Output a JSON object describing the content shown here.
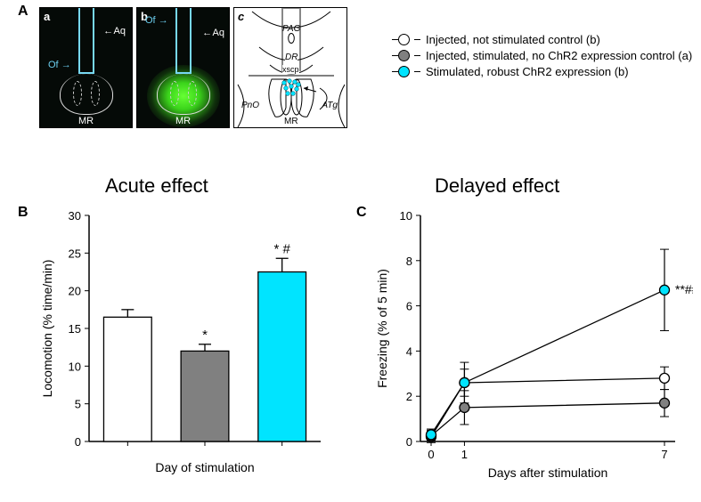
{
  "panel_labels": {
    "A": "A",
    "B": "B",
    "C": "C",
    "a": "a",
    "b": "b",
    "c": "c"
  },
  "micro_annotations": {
    "Aq": "Aq",
    "Of": "Of",
    "MR": "MR"
  },
  "schematic_labels": {
    "PAG": "PAG",
    "DR": "DR",
    "xscp": "xscp",
    "PnO": "PnO",
    "ATg": "ATg",
    "MR": "MR"
  },
  "legend": {
    "items": [
      {
        "label": "Injected, not stimulated control (b)",
        "fill": "#ffffff"
      },
      {
        "label": "Injected, stimulated, no ChR2 expression control (a)",
        "fill": "#808080"
      },
      {
        "label": "Stimulated, robust ChR2 expression (b)",
        "fill": "#00d8f0"
      }
    ]
  },
  "titles": {
    "acute": "Acute effect",
    "delayed": "Delayed effect"
  },
  "bar_chart": {
    "type": "bar",
    "title_fontsize": 22,
    "ylabel": "Locomotion  (% time/min)",
    "xlabel": "Day of stimulation",
    "label_fontsize": 14,
    "ylim": [
      0,
      30
    ],
    "ytick_step": 5,
    "bar_width": 0.62,
    "axis_color": "#000000",
    "bars": [
      {
        "value": 16.5,
        "err": 1.0,
        "fill": "#ffffff",
        "stroke": "#000000",
        "annot": ""
      },
      {
        "value": 12.0,
        "err": 0.9,
        "fill": "#808080",
        "stroke": "#000000",
        "annot": "*"
      },
      {
        "value": 22.5,
        "err": 1.8,
        "fill": "#00e4ff",
        "stroke": "#000000",
        "annot": "* #"
      }
    ]
  },
  "line_chart": {
    "type": "line",
    "ylabel": "Freezing (% of 5 min)",
    "xlabel": "Days after stimulation",
    "label_fontsize": 14,
    "xticks": [
      0,
      1,
      7
    ],
    "ylim": [
      0,
      10
    ],
    "ytick_step": 2,
    "axis_color": "#000000",
    "marker_stroke": "#000000",
    "marker_radius": 5.5,
    "line_color": "#000000",
    "series": [
      {
        "fill": "#ffffff",
        "points": [
          [
            0,
            0.2
          ],
          [
            1,
            2.6
          ],
          [
            7,
            2.8
          ]
        ],
        "err": [
          0.25,
          0.9,
          0.5
        ]
      },
      {
        "fill": "#808080",
        "points": [
          [
            0,
            0.25
          ],
          [
            1,
            1.5
          ],
          [
            7,
            1.7
          ]
        ],
        "err": [
          0.25,
          0.75,
          0.6
        ]
      },
      {
        "fill": "#00e4ff",
        "points": [
          [
            0,
            0.3
          ],
          [
            1,
            2.6
          ],
          [
            7,
            6.7
          ]
        ],
        "err": [
          0.25,
          0.6,
          1.8
        ]
      }
    ],
    "annotation": {
      "text": "**##",
      "at": [
        7,
        6.7
      ]
    }
  }
}
